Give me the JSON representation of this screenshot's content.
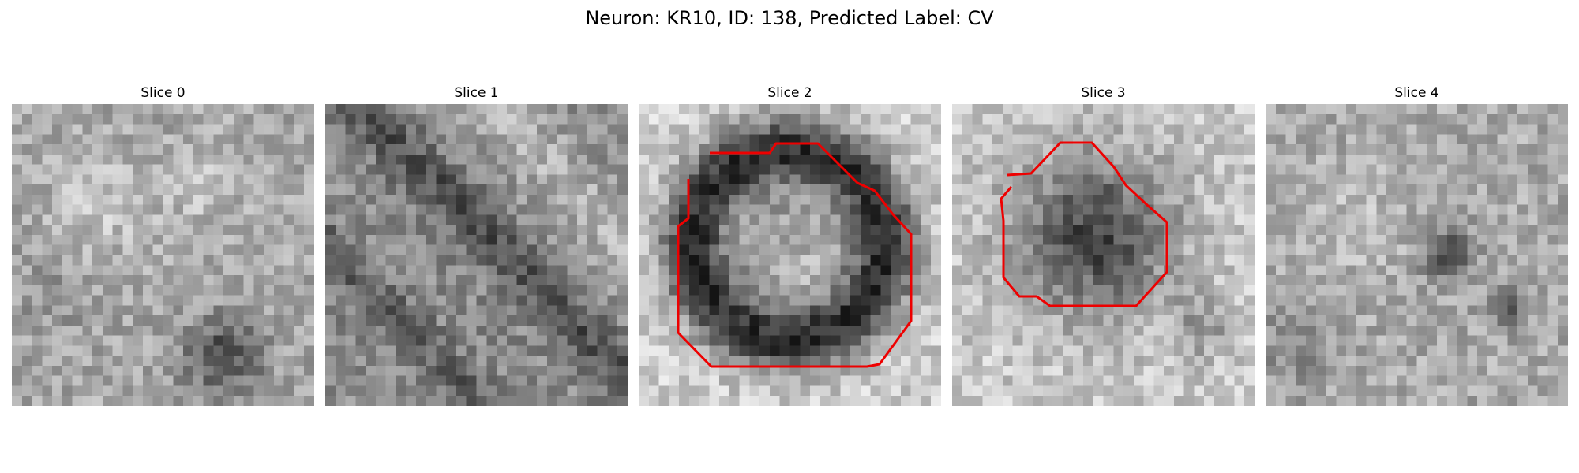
{
  "figure": {
    "title": "Neuron: KR10, ID: 138, Predicted Label: CV",
    "contour_color": "#ee0000",
    "panels": [
      {
        "title": "Slice 0",
        "has_contour": false
      },
      {
        "title": "Slice 1",
        "has_contour": false
      },
      {
        "title": "Slice 2",
        "has_contour": true
      },
      {
        "title": "Slice 3",
        "has_contour": true
      },
      {
        "title": "Slice 4",
        "has_contour": false
      }
    ]
  }
}
